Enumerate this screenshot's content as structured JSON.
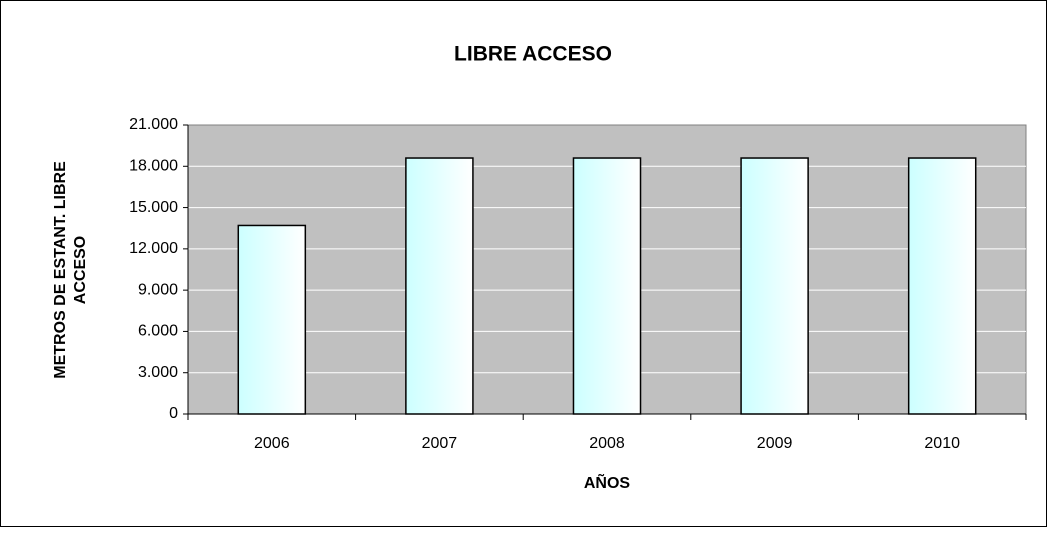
{
  "chart_data": {
    "type": "bar",
    "title": "LIBRE ACCESO",
    "x_label": "AÑOS",
    "y_label": [
      "METROS DE ESTANT. LIBRE",
      "ACCESO"
    ],
    "categories": [
      "2006",
      "2007",
      "2008",
      "2009",
      "2010"
    ],
    "values": [
      13700,
      18600,
      18600,
      18600,
      18600
    ],
    "color": "#ccffff",
    "ylim": [
      0,
      21000
    ],
    "yticks": [
      0,
      {
        "value": 3000,
        "label": "3.000"
      },
      {
        "value": 6000,
        "label": "6.000"
      },
      {
        "value": 9000,
        "label": "9.000"
      },
      {
        "value": 12000,
        "label": "12.000"
      },
      {
        "value": 15000,
        "label": "15.000"
      },
      {
        "value": 18000,
        "label": "18.000"
      },
      {
        "value": 21000,
        "label": "21.000"
      }
    ],
    "grid": true
  }
}
